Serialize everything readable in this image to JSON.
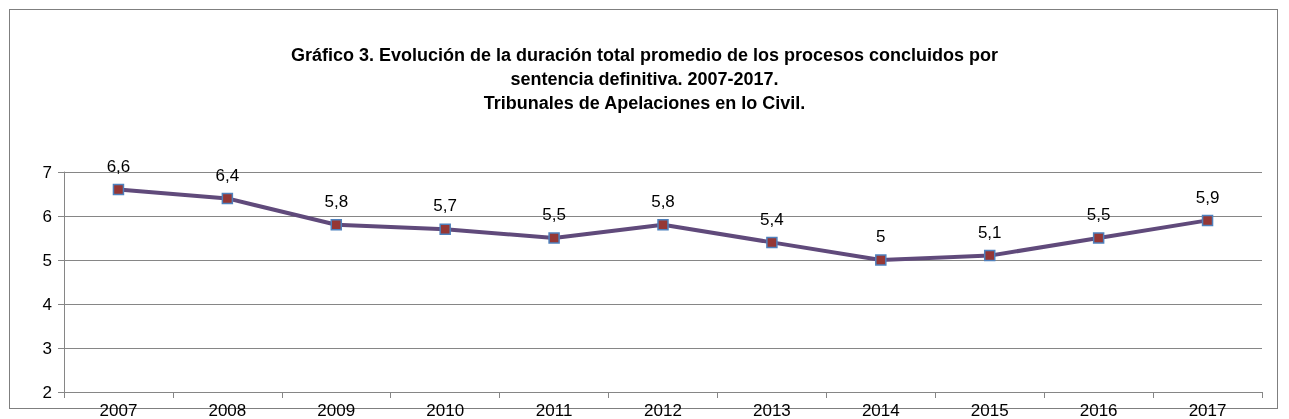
{
  "chart_data": {
    "type": "line",
    "title": "Gráfico 3. Evolución de la duración total promedio de los procesos concluidos por\nsentencia definitiva. 2007-2017.\nTribunales de Apelaciones en lo Civil.",
    "categories": [
      "2007",
      "2008",
      "2009",
      "2010",
      "2011",
      "2012",
      "2013",
      "2014",
      "2015",
      "2016",
      "2017"
    ],
    "series": [
      {
        "color": "#604a7b",
        "values": [
          6.6,
          6.4,
          5.8,
          5.7,
          5.5,
          5.8,
          5.4,
          5,
          5.1,
          5.5,
          5.9
        ],
        "value_labels": [
          "6,6",
          "6,4",
          "5,8",
          "5,7",
          "5,5",
          "5,8",
          "5,4",
          "5",
          "5,1",
          "5,5",
          "5,9"
        ]
      }
    ],
    "ylim": [
      2,
      7
    ],
    "yticks": [
      2,
      3,
      4,
      5,
      6,
      7
    ],
    "grid": "y",
    "marker": "square",
    "line_style": "solid"
  }
}
